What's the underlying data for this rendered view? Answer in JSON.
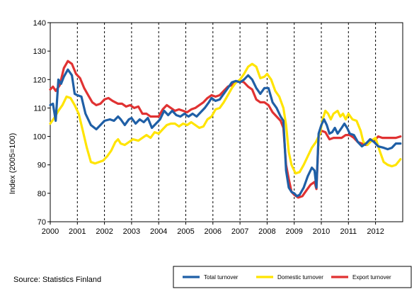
{
  "chart_data": {
    "type": "line",
    "ylabel": "Index (2005=100)",
    "ylim": [
      70,
      140
    ],
    "yticks": [
      70,
      80,
      90,
      100,
      110,
      120,
      130,
      140
    ],
    "xlim": [
      2000,
      2012.92
    ],
    "xticks": [
      "2000",
      "2001",
      "2002",
      "2003",
      "2004",
      "2005",
      "2006",
      "2007",
      "2008",
      "2009",
      "2010",
      "2011",
      "2012"
    ],
    "grid": "vertical dashed at year boundaries",
    "legend_position": "bottom-right",
    "series": [
      {
        "name": "Total turnover",
        "color": "#1f5fa6",
        "points": [
          [
            2000.0,
            111
          ],
          [
            2000.1,
            111.5
          ],
          [
            2000.2,
            105.5
          ],
          [
            2000.3,
            120
          ],
          [
            2000.4,
            118.5
          ],
          [
            2000.5,
            121
          ],
          [
            2000.65,
            123.5
          ],
          [
            2000.8,
            121.5
          ],
          [
            2000.9,
            115
          ],
          [
            2001.0,
            114.5
          ],
          [
            2001.15,
            114
          ],
          [
            2001.3,
            108
          ],
          [
            2001.5,
            104
          ],
          [
            2001.7,
            102.5
          ],
          [
            2001.85,
            104
          ],
          [
            2002.0,
            105.5
          ],
          [
            2002.2,
            106
          ],
          [
            2002.35,
            105.5
          ],
          [
            2002.5,
            107
          ],
          [
            2002.6,
            106
          ],
          [
            2002.75,
            104
          ],
          [
            2002.9,
            106
          ],
          [
            2003.0,
            106.5
          ],
          [
            2003.15,
            104.5
          ],
          [
            2003.3,
            106
          ],
          [
            2003.45,
            105
          ],
          [
            2003.6,
            106.5
          ],
          [
            2003.75,
            103
          ],
          [
            2003.95,
            105
          ],
          [
            2004.05,
            106
          ],
          [
            2004.2,
            109
          ],
          [
            2004.35,
            107.5
          ],
          [
            2004.5,
            109
          ],
          [
            2004.65,
            107.5
          ],
          [
            2004.8,
            107
          ],
          [
            2004.95,
            108
          ],
          [
            2005.1,
            107
          ],
          [
            2005.25,
            108
          ],
          [
            2005.4,
            107
          ],
          [
            2005.55,
            108.5
          ],
          [
            2005.7,
            110
          ],
          [
            2005.85,
            112
          ],
          [
            2005.95,
            113.5
          ],
          [
            2006.1,
            112.5
          ],
          [
            2006.25,
            113
          ],
          [
            2006.4,
            115
          ],
          [
            2006.55,
            117
          ],
          [
            2006.7,
            119
          ],
          [
            2006.85,
            119.5
          ],
          [
            2007.0,
            119
          ],
          [
            2007.15,
            120
          ],
          [
            2007.3,
            121.5
          ],
          [
            2007.45,
            120
          ],
          [
            2007.6,
            117
          ],
          [
            2007.75,
            115
          ],
          [
            2007.9,
            117
          ],
          [
            2008.05,
            117
          ],
          [
            2008.2,
            112
          ],
          [
            2008.35,
            110
          ],
          [
            2008.5,
            107
          ],
          [
            2008.6,
            105.5
          ],
          [
            2008.7,
            88
          ],
          [
            2008.8,
            82
          ],
          [
            2008.9,
            80.5
          ],
          [
            2009.0,
            80
          ],
          [
            2009.1,
            79
          ],
          [
            2009.2,
            79.5
          ],
          [
            2009.35,
            82
          ],
          [
            2009.5,
            86
          ],
          [
            2009.65,
            89
          ],
          [
            2009.75,
            88
          ],
          [
            2009.82,
            82
          ],
          [
            2009.9,
            101
          ],
          [
            2010.0,
            104
          ],
          [
            2010.1,
            106
          ],
          [
            2010.2,
            104
          ],
          [
            2010.3,
            101
          ],
          [
            2010.4,
            101.5
          ],
          [
            2010.5,
            103
          ],
          [
            2010.6,
            101
          ],
          [
            2010.75,
            103
          ],
          [
            2010.85,
            104.5
          ],
          [
            2010.95,
            103
          ],
          [
            2011.05,
            101
          ],
          [
            2011.2,
            100.5
          ],
          [
            2011.35,
            98
          ],
          [
            2011.5,
            96.5
          ],
          [
            2011.65,
            97.5
          ],
          [
            2011.8,
            99
          ],
          [
            2011.95,
            98
          ],
          [
            2012.1,
            96.5
          ],
          [
            2012.3,
            96
          ],
          [
            2012.45,
            95.5
          ],
          [
            2012.6,
            96
          ],
          [
            2012.75,
            97.5
          ],
          [
            2012.92,
            97.5
          ]
        ]
      },
      {
        "name": "Domestic turnover",
        "color": "#ffe400",
        "points": [
          [
            2000.0,
            104.5
          ],
          [
            2000.15,
            106.5
          ],
          [
            2000.3,
            109
          ],
          [
            2000.45,
            111
          ],
          [
            2000.6,
            114
          ],
          [
            2000.75,
            113.5
          ],
          [
            2000.9,
            111
          ],
          [
            2001.05,
            108
          ],
          [
            2001.2,
            102
          ],
          [
            2001.35,
            96
          ],
          [
            2001.5,
            91
          ],
          [
            2001.65,
            90.5
          ],
          [
            2001.8,
            91
          ],
          [
            2001.95,
            91.5
          ],
          [
            2002.1,
            93
          ],
          [
            2002.25,
            95
          ],
          [
            2002.4,
            98
          ],
          [
            2002.5,
            99
          ],
          [
            2002.6,
            97.5
          ],
          [
            2002.75,
            97
          ],
          [
            2002.9,
            98
          ],
          [
            2003.05,
            99
          ],
          [
            2003.25,
            98.5
          ],
          [
            2003.4,
            99.5
          ],
          [
            2003.55,
            100.5
          ],
          [
            2003.7,
            99.5
          ],
          [
            2003.85,
            101.5
          ],
          [
            2004.0,
            101
          ],
          [
            2004.15,
            102.5
          ],
          [
            2004.3,
            104
          ],
          [
            2004.45,
            104.5
          ],
          [
            2004.6,
            104.5
          ],
          [
            2004.75,
            103.5
          ],
          [
            2004.9,
            104.5
          ],
          [
            2005.05,
            104
          ],
          [
            2005.2,
            105
          ],
          [
            2005.35,
            104
          ],
          [
            2005.5,
            103
          ],
          [
            2005.65,
            103.5
          ],
          [
            2005.8,
            106
          ],
          [
            2005.95,
            107
          ],
          [
            2006.1,
            109.5
          ],
          [
            2006.25,
            110
          ],
          [
            2006.4,
            112
          ],
          [
            2006.55,
            114.5
          ],
          [
            2006.7,
            117
          ],
          [
            2006.85,
            119
          ],
          [
            2007.0,
            120
          ],
          [
            2007.15,
            122
          ],
          [
            2007.3,
            124.5
          ],
          [
            2007.45,
            125.5
          ],
          [
            2007.6,
            124.5
          ],
          [
            2007.75,
            120.5
          ],
          [
            2007.9,
            121
          ],
          [
            2008.0,
            122
          ],
          [
            2008.15,
            120
          ],
          [
            2008.3,
            116
          ],
          [
            2008.45,
            114
          ],
          [
            2008.6,
            110
          ],
          [
            2008.7,
            104
          ],
          [
            2008.8,
            94.5
          ],
          [
            2008.9,
            90
          ],
          [
            2009.05,
            87
          ],
          [
            2009.2,
            87.5
          ],
          [
            2009.35,
            90
          ],
          [
            2009.5,
            93
          ],
          [
            2009.65,
            96
          ],
          [
            2009.8,
            98
          ],
          [
            2009.95,
            101
          ],
          [
            2010.05,
            106
          ],
          [
            2010.15,
            109
          ],
          [
            2010.25,
            108
          ],
          [
            2010.35,
            106
          ],
          [
            2010.45,
            108
          ],
          [
            2010.6,
            109
          ],
          [
            2010.7,
            107
          ],
          [
            2010.8,
            108
          ],
          [
            2010.9,
            106
          ],
          [
            2011.0,
            108
          ],
          [
            2011.15,
            106
          ],
          [
            2011.3,
            105.5
          ],
          [
            2011.45,
            102
          ],
          [
            2011.55,
            98
          ],
          [
            2011.7,
            97
          ],
          [
            2011.85,
            98.5
          ],
          [
            2012.0,
            99.5
          ],
          [
            2012.15,
            95
          ],
          [
            2012.3,
            91
          ],
          [
            2012.45,
            90
          ],
          [
            2012.6,
            89.5
          ],
          [
            2012.75,
            90
          ],
          [
            2012.92,
            92
          ]
        ]
      },
      {
        "name": "Export turnover",
        "color": "#e03232",
        "points": [
          [
            2000.0,
            116.5
          ],
          [
            2000.1,
            117.5
          ],
          [
            2000.2,
            116
          ],
          [
            2000.35,
            118
          ],
          [
            2000.5,
            124
          ],
          [
            2000.65,
            126.5
          ],
          [
            2000.8,
            125.5
          ],
          [
            2000.95,
            122
          ],
          [
            2001.1,
            120.5
          ],
          [
            2001.25,
            117
          ],
          [
            2001.4,
            114.5
          ],
          [
            2001.55,
            112
          ],
          [
            2001.7,
            111
          ],
          [
            2001.85,
            111.5
          ],
          [
            2002.0,
            113
          ],
          [
            2002.15,
            113.5
          ],
          [
            2002.3,
            112.5
          ],
          [
            2002.5,
            111.5
          ],
          [
            2002.65,
            111.5
          ],
          [
            2002.8,
            110.5
          ],
          [
            2002.95,
            111
          ],
          [
            2003.1,
            110
          ],
          [
            2003.25,
            110.5
          ],
          [
            2003.4,
            108
          ],
          [
            2003.55,
            108
          ],
          [
            2003.7,
            107
          ],
          [
            2003.85,
            107
          ],
          [
            2004.0,
            107
          ],
          [
            2004.15,
            109.5
          ],
          [
            2004.3,
            111
          ],
          [
            2004.45,
            110
          ],
          [
            2004.6,
            109
          ],
          [
            2004.75,
            109.5
          ],
          [
            2004.9,
            109
          ],
          [
            2005.05,
            108.5
          ],
          [
            2005.2,
            109.5
          ],
          [
            2005.35,
            110
          ],
          [
            2005.5,
            111
          ],
          [
            2005.65,
            112
          ],
          [
            2005.8,
            113.5
          ],
          [
            2005.95,
            114.5
          ],
          [
            2006.1,
            114
          ],
          [
            2006.25,
            114.5
          ],
          [
            2006.4,
            116
          ],
          [
            2006.55,
            117.5
          ],
          [
            2006.7,
            118
          ],
          [
            2006.85,
            119
          ],
          [
            2007.0,
            119.5
          ],
          [
            2007.15,
            119
          ],
          [
            2007.3,
            117.5
          ],
          [
            2007.45,
            116.5
          ],
          [
            2007.6,
            113
          ],
          [
            2007.75,
            112
          ],
          [
            2007.9,
            112
          ],
          [
            2008.05,
            111
          ],
          [
            2008.2,
            108.5
          ],
          [
            2008.35,
            107
          ],
          [
            2008.5,
            105.5
          ],
          [
            2008.6,
            103
          ],
          [
            2008.7,
            90
          ],
          [
            2008.8,
            85
          ],
          [
            2008.9,
            80.5
          ],
          [
            2009.0,
            79.5
          ],
          [
            2009.15,
            78.5
          ],
          [
            2009.3,
            79
          ],
          [
            2009.45,
            81
          ],
          [
            2009.6,
            83
          ],
          [
            2009.75,
            84
          ],
          [
            2009.82,
            81.5
          ],
          [
            2009.9,
            100
          ],
          [
            2010.0,
            102
          ],
          [
            2010.15,
            101.5
          ],
          [
            2010.3,
            99
          ],
          [
            2010.45,
            99.5
          ],
          [
            2010.6,
            99.5
          ],
          [
            2010.75,
            99.5
          ],
          [
            2010.9,
            100.5
          ],
          [
            2011.05,
            100.5
          ],
          [
            2011.2,
            99.5
          ],
          [
            2011.35,
            98
          ],
          [
            2011.5,
            97.5
          ],
          [
            2011.65,
            97
          ],
          [
            2011.8,
            99
          ],
          [
            2011.95,
            98.5
          ],
          [
            2012.1,
            100
          ],
          [
            2012.25,
            99.5
          ],
          [
            2012.45,
            99.5
          ],
          [
            2012.6,
            99.5
          ],
          [
            2012.75,
            99.5
          ],
          [
            2012.92,
            100
          ]
        ]
      }
    ]
  },
  "source": "Source: Statistics Finland"
}
